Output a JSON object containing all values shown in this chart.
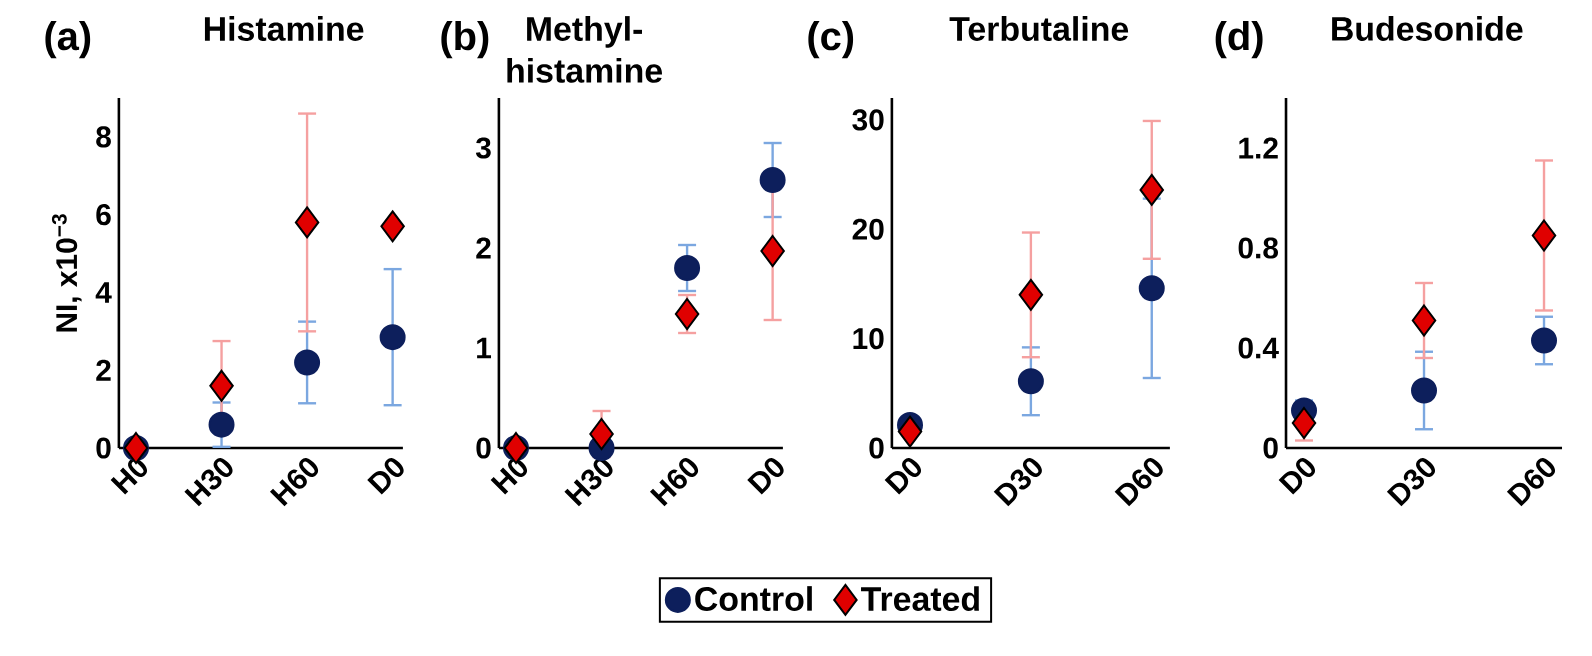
{
  "chart_data": [
    {
      "type": "scatter",
      "title": "Histamine",
      "annotations": [
        "(a)"
      ],
      "ylabel": "NI, x10$^{−3}$",
      "categories": [
        "H0",
        "H30",
        "H60",
        "D0"
      ],
      "ylim": [
        0,
        9
      ],
      "yticks": [
        0,
        2,
        4,
        6,
        8
      ],
      "grid": false,
      "series": [
        {
          "color": "#0d1f5c",
          "marker": "circle",
          "values": [
            0,
            0.6,
            2.2,
            2.85
          ],
          "errors": [
            null,
            0.57,
            1.05,
            1.75
          ]
        },
        {
          "color": "#e00000",
          "marker": "diamond",
          "values": [
            0,
            1.6,
            5.8,
            5.7
          ],
          "errors": [
            null,
            1.15,
            2.8,
            null
          ]
        }
      ]
    },
    {
      "type": "scatter",
      "title": "Methyl-histamine",
      "annotations": [
        "(b)"
      ],
      "legend": "bottom",
      "categories": [
        "H0",
        "H30",
        "H60",
        "D0"
      ],
      "ylim": [
        0,
        3.5
      ],
      "yticks": [
        0,
        1,
        2,
        3
      ],
      "grid": false,
      "series": [
        {
          "name": "Control",
          "color": "#0d1f5c",
          "marker": "circle",
          "values": [
            0,
            0,
            1.8,
            2.68
          ],
          "errors": [
            null,
            null,
            0.23,
            0.37
          ]
        },
        {
          "name": "Treated",
          "color": "#e00000",
          "marker": "diamond",
          "values": [
            0,
            0.14,
            1.34,
            1.97
          ],
          "errors": [
            null,
            0.23,
            0.19,
            0.69
          ]
        }
      ]
    },
    {
      "type": "scatter",
      "title": "Terbutaline",
      "annotations": [
        "(c)"
      ],
      "categories": [
        "D0",
        "D30",
        "D60"
      ],
      "ylim": [
        0,
        32
      ],
      "yticks": [
        0,
        10,
        20,
        30
      ],
      "grid": false,
      "series": [
        {
          "color": "#0d1f5c",
          "marker": "circle",
          "values": [
            2.1,
            6.1,
            14.6
          ],
          "errors": [
            null,
            3.1,
            8.2
          ]
        },
        {
          "color": "#e00000",
          "marker": "diamond",
          "values": [
            1.5,
            14.0,
            23.6
          ],
          "errors": [
            null,
            5.7,
            6.3
          ]
        }
      ]
    },
    {
      "type": "scatter",
      "title": "Budesonide",
      "annotations": [
        "(d)"
      ],
      "categories": [
        "D0",
        "D30",
        "D60"
      ],
      "ylim": [
        0,
        1.4
      ],
      "yticks": [
        0,
        0.4,
        0.8,
        1.2
      ],
      "grid": false,
      "series": [
        {
          "color": "#0d1f5c",
          "marker": "circle",
          "values": [
            0.15,
            0.23,
            0.43
          ],
          "errors": [
            0.04,
            0.155,
            0.095
          ]
        },
        {
          "color": "#e00000",
          "marker": "diamond",
          "values": [
            0.1,
            0.51,
            0.85
          ],
          "errors": [
            0.07,
            0.15,
            0.3
          ]
        }
      ]
    }
  ]
}
